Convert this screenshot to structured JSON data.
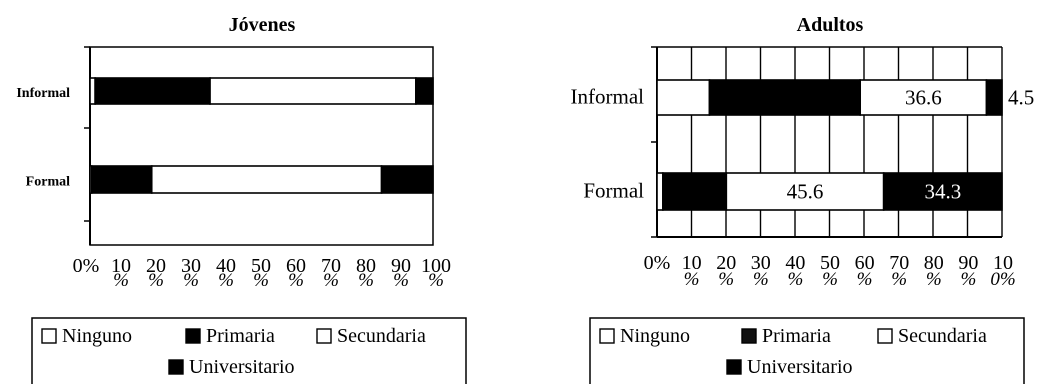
{
  "chart_data": [
    {
      "type": "bar",
      "stacked": true,
      "orientation": "horizontal",
      "title": "Jóvenes",
      "categories": [
        "Informal",
        "Formal"
      ],
      "series": [
        {
          "name": "Ninguno",
          "values": [
            1.5,
            0.5
          ]
        },
        {
          "name": "Primaria",
          "values": [
            33.5,
            17.5
          ]
        },
        {
          "name": "Secundaria",
          "values": [
            60,
            67
          ]
        },
        {
          "name": "Universitario",
          "values": [
            5,
            15
          ]
        }
      ],
      "xlim": [
        0,
        100
      ],
      "tick_numbers": [
        "0%",
        "10",
        "20",
        "30",
        "40",
        "50",
        "60",
        "70",
        "80",
        "90",
        "100"
      ],
      "tick_pcts": [
        "%",
        "%",
        "%",
        "%",
        "%",
        "%",
        "%",
        "%",
        "%",
        "%"
      ],
      "grid": false,
      "legend": {
        "placement": "bottom",
        "items": [
          {
            "name": "Ninguno",
            "color": "#ffffff"
          },
          {
            "name": "Primaria",
            "color": "#000000"
          },
          {
            "name": "Secundaria",
            "color": "#ffffff"
          },
          {
            "name": "Universitario",
            "color": "#000000"
          }
        ]
      }
    },
    {
      "type": "bar",
      "stacked": true,
      "orientation": "horizontal",
      "title": "Adultos",
      "categories": [
        "Informal",
        "Formal"
      ],
      "series": [
        {
          "name": "Ninguno",
          "values": [
            15.2,
            1.7
          ]
        },
        {
          "name": "Primaria",
          "values": [
            43.7,
            18.4
          ]
        },
        {
          "name": "Secundaria",
          "values": [
            36.6,
            45.6
          ]
        },
        {
          "name": "Universitario",
          "values": [
            4.5,
            34.3
          ]
        }
      ],
      "data_labels": [
        {
          "category": "Informal",
          "series": "Secundaria",
          "text": "36.6"
        },
        {
          "category": "Informal",
          "series": "Universitario",
          "text": "4.5"
        },
        {
          "category": "Formal",
          "series": "Secundaria",
          "text": "45.6"
        },
        {
          "category": "Formal",
          "series": "Universitario",
          "text": "34.3"
        }
      ],
      "xlim": [
        0,
        100
      ],
      "tick_numbers": [
        "0%",
        "10",
        "20",
        "30",
        "40",
        "50",
        "60",
        "70",
        "80",
        "90",
        "10"
      ],
      "tick_pcts": [
        "%",
        "%",
        "%",
        "%",
        "%",
        "%",
        "%",
        "%",
        "%",
        "0%"
      ],
      "grid": true,
      "legend": {
        "placement": "bottom",
        "items": [
          {
            "name": "Ninguno",
            "color": "#ffffff"
          },
          {
            "name": "Primaria",
            "color": "#111111"
          },
          {
            "name": "Secundaria",
            "color": "#ffffff"
          },
          {
            "name": "Universitario",
            "color": "#000000"
          }
        ]
      }
    }
  ]
}
